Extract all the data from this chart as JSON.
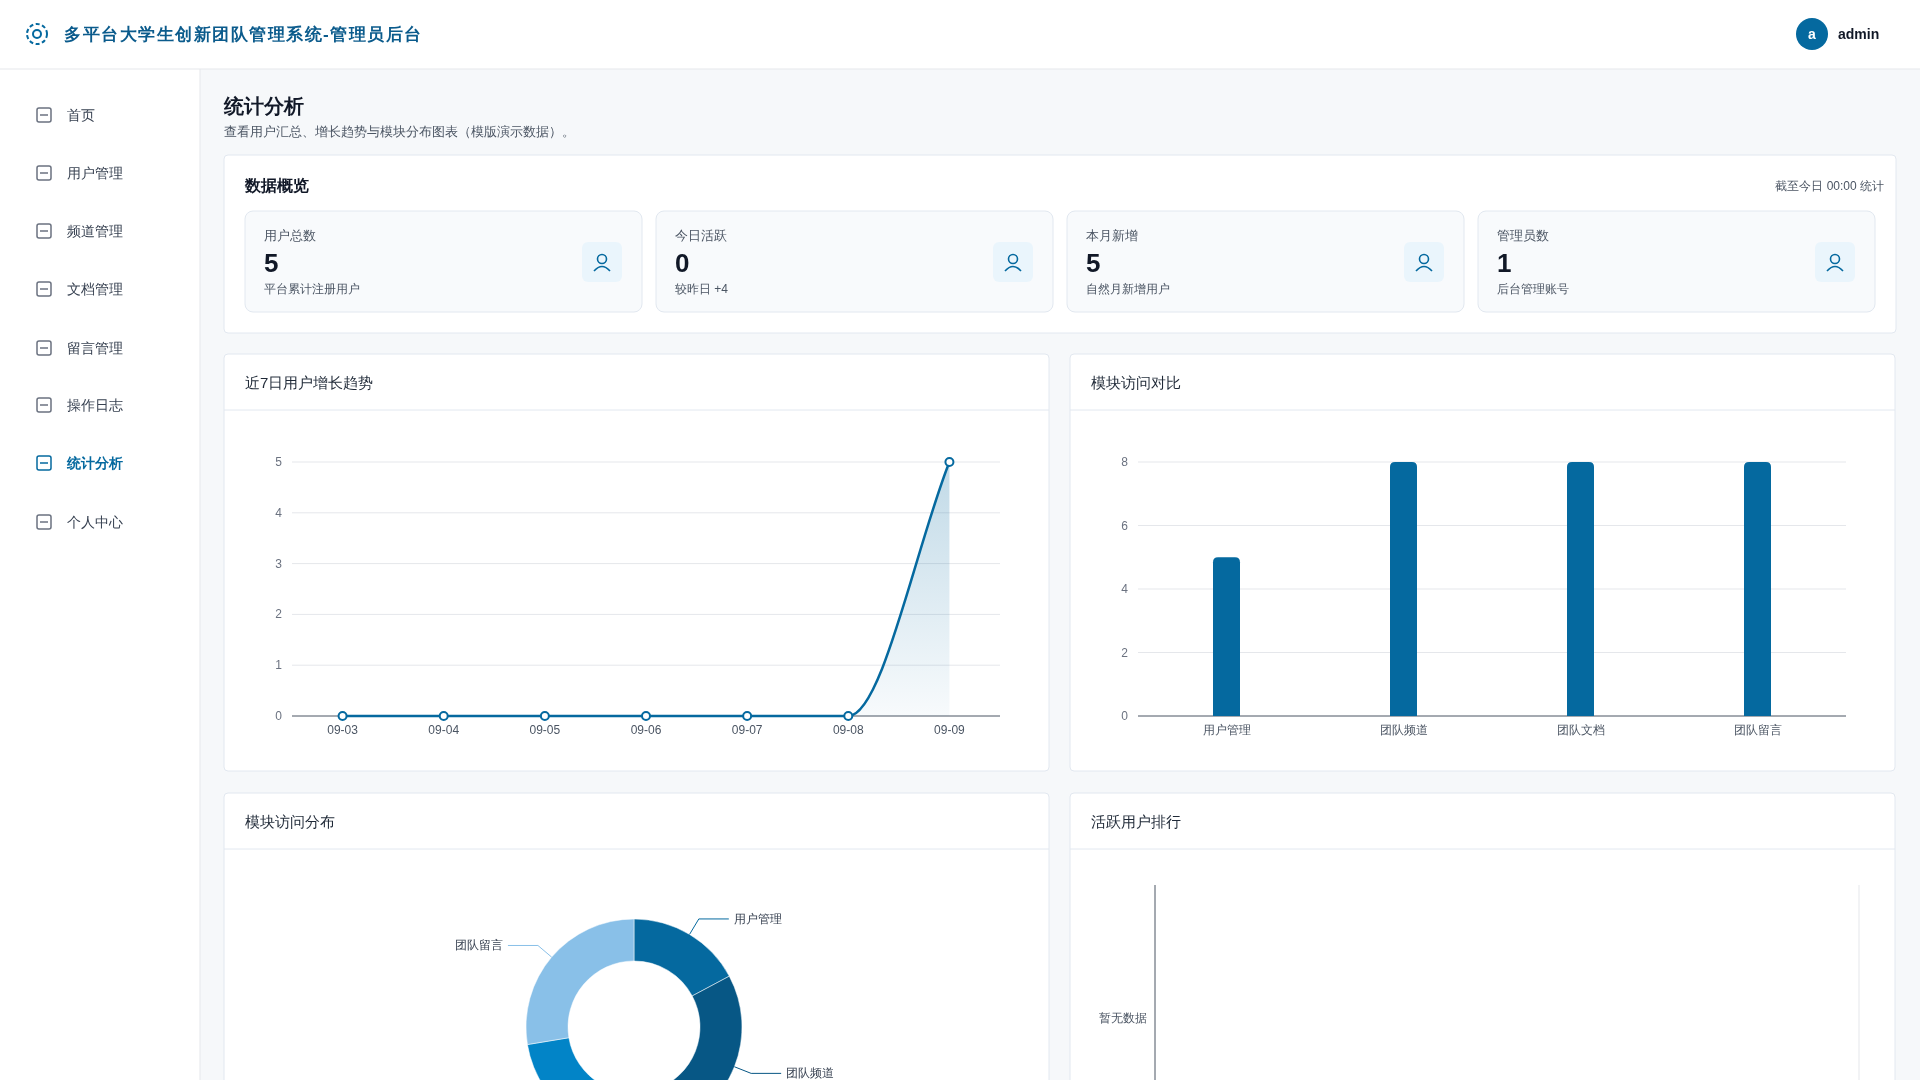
{
  "chart_data": [
    {
      "type": "other",
      "title": "多平台大学生创新团队管理系统-管理员后台",
      "annotations": [
        "a",
        "admin",
        "首页",
        "用户管理",
        "频道管理",
        "文档管理",
        "留言管理",
        "操作日志",
        "统计分析",
        "个人中心",
        "统计分析",
        "查看用户汇总、增长趋势与模块分布图表（模版演示数据）。"
      ]
    },
    {
      "type": "other",
      "title": "数据概览",
      "subtitle": "截至今日 00:00 统计",
      "annotations": [
        "用户总数",
        "5",
        "平台累计注册用户",
        "今日活跃",
        "0",
        "较昨日 +4",
        "本月新增",
        "5",
        "自然月新增用户",
        "管理员数",
        "1",
        "后台管理账号"
      ]
    },
    {
      "type": "area",
      "title": "近7日用户增长趋势",
      "categories": [
        "09-03",
        "09-04",
        "09-05",
        "09-06",
        "09-07",
        "09-08",
        "09-09"
      ],
      "values": [
        0,
        0,
        0,
        0,
        0,
        0,
        5
      ],
      "color": "#05699f",
      "ylim": [
        0,
        5
      ],
      "yticks": [
        0,
        1,
        2,
        3,
        4,
        5
      ],
      "grid": "y",
      "marker": "circle"
    },
    {
      "type": "bar",
      "title": "模块访问对比",
      "categories": [
        "用户管理",
        "团队频道",
        "团队文档",
        "团队留言"
      ],
      "values": [
        5,
        8,
        8,
        8
      ],
      "color": "#05699f",
      "ylim": [
        0,
        8
      ],
      "yticks": [
        0,
        2,
        4,
        6,
        8
      ],
      "grid": "y"
    },
    {
      "type": "donut",
      "title": "模块访问分布",
      "categories": [
        "用户管理",
        "团队频道",
        null,
        "团队留言"
      ],
      "values": [
        17.2,
        27.6,
        27.6,
        27.6
      ],
      "colors": [
        "#05699f",
        "#075785",
        "#0284c7",
        "#89c0e8"
      ]
    },
    {
      "type": "other",
      "title": "活跃用户排行",
      "annotations": [
        "暂无数据"
      ]
    }
  ]
}
